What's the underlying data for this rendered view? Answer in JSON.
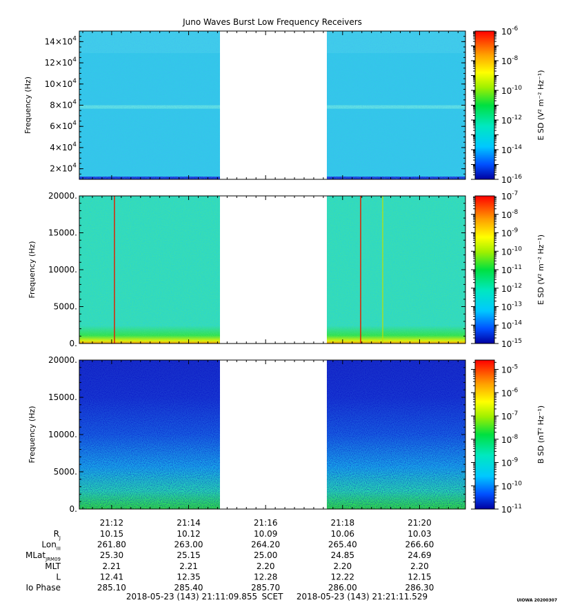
{
  "chart_data": [
    {
      "type": "heatmap",
      "title": "Juno Waves Burst Low Frequency Receivers",
      "ylabel": "Frequency (Hz)",
      "ylim": [
        10000,
        150000
      ],
      "yticks": [
        {
          "value": 20000,
          "mant": "2×10",
          "exp": "4"
        },
        {
          "value": 40000,
          "mant": "4×10",
          "exp": "4"
        },
        {
          "value": 60000,
          "mant": "6×10",
          "exp": "4"
        },
        {
          "value": 80000,
          "mant": "8×10",
          "exp": "4"
        },
        {
          "value": 100000,
          "mant": "10×10",
          "exp": "4"
        },
        {
          "value": 120000,
          "mant": "12×10",
          "exp": "4"
        },
        {
          "value": 140000,
          "mant": "14×10",
          "exp": "4"
        }
      ],
      "colorbar": {
        "label": "E SD (V² m⁻² Hz⁻¹)",
        "scale": "log",
        "exp_min": -16,
        "exp_max": -6,
        "labels": [
          "-6",
          "-8",
          "-10",
          "-12",
          "-14",
          "-16"
        ],
        "label_exps": [
          -6,
          -8,
          -10,
          -12,
          -14,
          -16
        ]
      },
      "gap": [
        "21:15",
        "21:17"
      ],
      "background_color": "#33c8e8",
      "features": "band near 78 kHz"
    },
    {
      "type": "heatmap",
      "ylabel": "Frequency (Hz)",
      "ylim": [
        0,
        20000
      ],
      "yticks": [
        {
          "value": 0,
          "text": "0."
        },
        {
          "value": 5000,
          "text": "5000."
        },
        {
          "value": 10000,
          "text": "10000."
        },
        {
          "value": 15000,
          "text": "15000."
        },
        {
          "value": 20000,
          "text": "20000."
        }
      ],
      "colorbar": {
        "label": "E SD (V² m⁻² Hz⁻¹)",
        "scale": "log",
        "exp_min": -15,
        "exp_max": -7,
        "labels": [
          "-7",
          "-8",
          "-9",
          "-10",
          "-11",
          "-12",
          "-13",
          "-14",
          "-15"
        ],
        "label_exps": [
          -7,
          -8,
          -9,
          -10,
          -11,
          -12,
          -13,
          -14,
          -15
        ]
      },
      "gap": [
        "21:15",
        "21:17"
      ],
      "background_color": "#2fd8c4",
      "features": "vertical lines near 21:12, 21:18.5 and 21:19.1"
    },
    {
      "type": "heatmap",
      "ylabel": "Frequency (Hz)",
      "ylim": [
        0,
        20000
      ],
      "yticks": [
        {
          "value": 0,
          "text": "0."
        },
        {
          "value": 5000,
          "text": "5000."
        },
        {
          "value": 10000,
          "text": "10000."
        },
        {
          "value": 15000,
          "text": "15000."
        },
        {
          "value": 20000,
          "text": "20000."
        }
      ],
      "colorbar": {
        "label": "B SD (nT² Hz⁻¹)",
        "scale": "log",
        "exp_min": -11,
        "exp_max": -4.6,
        "labels": [
          "-5",
          "-6",
          "-7",
          "-8",
          "-9",
          "-10",
          "-11"
        ],
        "label_exps": [
          -5,
          -6,
          -7,
          -8,
          -9,
          -10,
          -11
        ]
      },
      "gap": [
        "21:15",
        "21:17"
      ],
      "background_color": "#1f3ad8"
    }
  ],
  "x_axis": {
    "start_min": 71.1595,
    "end_min": 81.1922,
    "ticks": [
      {
        "label": "21:12",
        "min": 72
      },
      {
        "label": "21:14",
        "min": 74
      },
      {
        "label": "21:16",
        "min": 76
      },
      {
        "label": "21:18",
        "min": 78
      },
      {
        "label": "21:20",
        "min": 80
      }
    ]
  },
  "ephemeris": [
    {
      "name": "R",
      "sub": "J",
      "values": [
        "10.15",
        "10.12",
        "10.09",
        "10.06",
        "10.03"
      ]
    },
    {
      "name": "Lon",
      "sub": "III",
      "values": [
        "261.80",
        "263.00",
        "264.20",
        "265.40",
        "266.60"
      ]
    },
    {
      "name": "MLat",
      "sub": "JRM09",
      "values": [
        "25.30",
        "25.15",
        "25.00",
        "24.85",
        "24.69"
      ]
    },
    {
      "name": "MLT",
      "sub": "",
      "values": [
        "2.21",
        "2.21",
        "2.20",
        "2.20",
        "2.20"
      ]
    },
    {
      "name": "L",
      "sub": "",
      "values": [
        "12.41",
        "12.35",
        "12.28",
        "12.22",
        "12.15"
      ]
    },
    {
      "name": "Io Phase",
      "sub": "",
      "values": [
        "285.10",
        "285.40",
        "285.70",
        "286.00",
        "286.30"
      ]
    }
  ],
  "footer": {
    "start": "2018-05-23 (143) 21:11:09.855",
    "scet": "SCET",
    "end": "2018-05-23 (143) 21:21:11.529",
    "stamp": "UIOWA 20200307"
  }
}
